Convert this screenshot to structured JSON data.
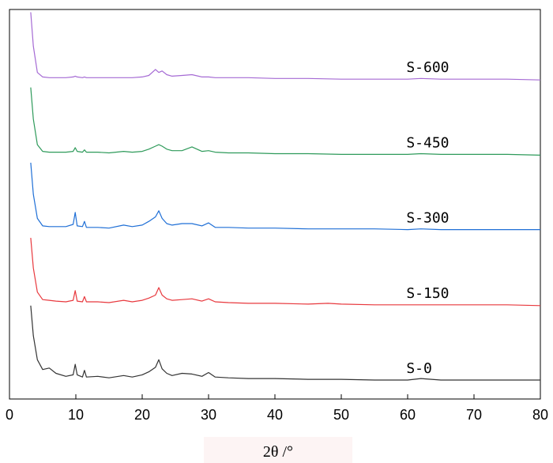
{
  "chart_data": {
    "type": "line",
    "xlabel": "2θ /°",
    "ylabel": "",
    "xlim": [
      0,
      80
    ],
    "xticks": [
      0,
      10,
      20,
      30,
      40,
      50,
      60,
      70,
      80
    ],
    "grid": false,
    "legend": "inline-right",
    "series": [
      {
        "name": "S-0",
        "color": "#333333",
        "baseline": 0,
        "x": [
          3.2,
          3.6,
          4.2,
          5.0,
          6.0,
          7.0,
          8.5,
          9.6,
          9.9,
          10.2,
          11.0,
          11.3,
          11.6,
          13.3,
          15.0,
          17.2,
          18.5,
          20.0,
          21.0,
          22.0,
          22.5,
          23.0,
          23.7,
          24.5,
          26.0,
          27.5,
          29.0,
          30.0,
          31.0,
          33.0,
          36.0,
          40.0,
          45.0,
          50.0,
          55.0,
          60.0,
          62.0,
          65.0,
          70.0,
          75.0,
          80.0
        ],
        "y": [
          100,
          60,
          28,
          15,
          17,
          10,
          6,
          8,
          22,
          8,
          5,
          14,
          5,
          6,
          4,
          7,
          5,
          8,
          12,
          18,
          28,
          16,
          10,
          7,
          10,
          9,
          6,
          11,
          5,
          4,
          3,
          3,
          2,
          2,
          1,
          1,
          3,
          1,
          1,
          1,
          1
        ]
      },
      {
        "name": "S-150",
        "color": "#e8383d",
        "baseline": 100,
        "x": [
          3.2,
          3.6,
          4.2,
          5.0,
          6.0,
          7.0,
          8.5,
          9.6,
          9.9,
          10.2,
          11.0,
          11.3,
          11.6,
          13.3,
          15.0,
          17.2,
          18.5,
          20.0,
          21.0,
          22.0,
          22.5,
          23.0,
          23.7,
          24.5,
          26.0,
          27.5,
          29.0,
          30.0,
          31.0,
          33.0,
          36.0,
          40.0,
          45.0,
          48.0,
          50.0,
          55.0,
          60.0,
          65.0,
          70.0,
          75.0,
          80.0
        ],
        "y": [
          90,
          50,
          18,
          8,
          7,
          6,
          5,
          7,
          20,
          6,
          5,
          12,
          5,
          5,
          4,
          7,
          5,
          7,
          10,
          14,
          24,
          14,
          9,
          7,
          8,
          9,
          6,
          9,
          5,
          4,
          3,
          3,
          2,
          3,
          2,
          1,
          1,
          1,
          1,
          1,
          0
        ]
      },
      {
        "name": "S-300",
        "color": "#1f6fd6",
        "baseline": 200,
        "x": [
          3.2,
          3.6,
          4.2,
          5.0,
          6.0,
          7.0,
          8.5,
          9.6,
          9.9,
          10.2,
          11.0,
          11.3,
          11.6,
          13.3,
          15.0,
          17.2,
          18.5,
          20.0,
          21.0,
          22.0,
          22.5,
          23.0,
          23.7,
          24.5,
          26.0,
          27.5,
          29.0,
          30.0,
          31.0,
          33.0,
          36.0,
          40.0,
          45.0,
          50.0,
          55.0,
          60.0,
          62.0,
          65.0,
          70.0,
          75.0,
          80.0
        ],
        "y": [
          90,
          48,
          16,
          6,
          5,
          5,
          5,
          8,
          24,
          6,
          5,
          12,
          4,
          4,
          3,
          7,
          5,
          7,
          12,
          18,
          26,
          16,
          9,
          7,
          9,
          9,
          6,
          10,
          4,
          4,
          3,
          3,
          2,
          2,
          2,
          1,
          2,
          1,
          1,
          1,
          1
        ]
      },
      {
        "name": "S-450",
        "color": "#2e9a5a",
        "baseline": 300,
        "x": [
          3.2,
          3.6,
          4.2,
          5.0,
          6.0,
          7.0,
          8.5,
          9.6,
          9.9,
          10.2,
          11.0,
          11.3,
          11.6,
          13.3,
          15.0,
          17.2,
          18.5,
          20.0,
          21.0,
          22.0,
          22.5,
          23.0,
          23.7,
          24.5,
          26.0,
          27.5,
          29.0,
          30.0,
          31.0,
          33.0,
          36.0,
          40.0,
          45.0,
          50.0,
          55.0,
          60.0,
          62.0,
          65.0,
          70.0,
          75.0,
          80.0
        ],
        "y": [
          90,
          48,
          14,
          5,
          4,
          4,
          4,
          5,
          10,
          5,
          4,
          7,
          4,
          4,
          3,
          5,
          4,
          5,
          8,
          12,
          14,
          12,
          8,
          6,
          6,
          11,
          5,
          6,
          4,
          3,
          3,
          2,
          2,
          1,
          1,
          1,
          2,
          1,
          1,
          1,
          0
        ]
      },
      {
        "name": "S-600",
        "color": "#a56ad4",
        "baseline": 400,
        "x": [
          3.2,
          3.6,
          4.2,
          5.0,
          6.0,
          7.0,
          8.5,
          9.6,
          9.9,
          10.2,
          11.0,
          11.3,
          11.6,
          13.3,
          15.0,
          17.2,
          18.5,
          20.0,
          21.0,
          22.0,
          22.5,
          23.0,
          23.7,
          24.5,
          26.0,
          27.5,
          29.0,
          30.0,
          31.0,
          33.0,
          36.0,
          40.0,
          45.0,
          50.0,
          55.0,
          60.0,
          62.0,
          65.0,
          70.0,
          75.0,
          80.0
        ],
        "y": [
          90,
          45,
          10,
          4,
          3,
          3,
          3,
          4,
          5,
          4,
          3,
          4,
          3,
          3,
          3,
          3,
          3,
          4,
          6,
          14,
          10,
          12,
          7,
          5,
          6,
          7,
          4,
          4,
          3,
          3,
          3,
          2,
          2,
          1,
          1,
          1,
          2,
          1,
          1,
          1,
          0
        ]
      }
    ]
  }
}
